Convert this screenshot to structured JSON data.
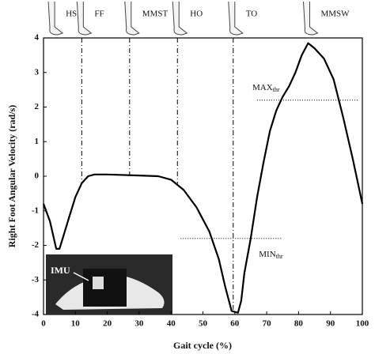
{
  "chart_data": {
    "type": "line",
    "ylabel": "Right Foot Angular Velocity (rad/s)",
    "xlabel": "Gait cycle (%)",
    "x": [
      0,
      2,
      4,
      5,
      6,
      8,
      10,
      12,
      14,
      16,
      20,
      30,
      36,
      40,
      44,
      48,
      52,
      55,
      57,
      59,
      61,
      62,
      63,
      65,
      67,
      69,
      71,
      73,
      75,
      77,
      79,
      81,
      83,
      85,
      88,
      91,
      94,
      97,
      100
    ],
    "values": [
      -0.8,
      -1.3,
      -2.1,
      -2.1,
      -1.8,
      -1.2,
      -0.6,
      -0.2,
      0.0,
      0.05,
      0.05,
      0.02,
      0.0,
      -0.1,
      -0.4,
      -0.9,
      -1.6,
      -2.4,
      -3.2,
      -3.9,
      -3.95,
      -3.6,
      -2.8,
      -1.8,
      -0.6,
      0.4,
      1.3,
      1.9,
      2.3,
      2.6,
      3.0,
      3.5,
      3.85,
      3.7,
      3.4,
      2.8,
      1.7,
      0.5,
      -0.8
    ],
    "color": "#000000",
    "xlim": [
      0,
      100
    ],
    "xticks": [
      0,
      10,
      20,
      30,
      40,
      50,
      60,
      70,
      80,
      90,
      100
    ],
    "ylim": [
      -4,
      4
    ],
    "yticks": [
      -4,
      -3,
      -2,
      -1,
      0,
      1,
      2,
      3,
      4
    ],
    "events": [
      {
        "label": "HS",
        "x": 3,
        "line": false
      },
      {
        "label": "FF",
        "x": 12,
        "line": true
      },
      {
        "label": "MMST",
        "x": 27,
        "line": true
      },
      {
        "label": "HO",
        "x": 42,
        "line": true
      },
      {
        "label": "TO",
        "x": 59.5,
        "line": true
      },
      {
        "label": "MMSW",
        "x": 83,
        "line": false
      }
    ],
    "thresholds": [
      {
        "label": "MAX",
        "sub": "thr",
        "y": 2.2,
        "xrange": [
          67,
          99
        ]
      },
      {
        "label": "MIN",
        "sub": "thr",
        "y": -1.8,
        "xrange": [
          43,
          75
        ]
      }
    ],
    "inset_label": "IMU"
  }
}
